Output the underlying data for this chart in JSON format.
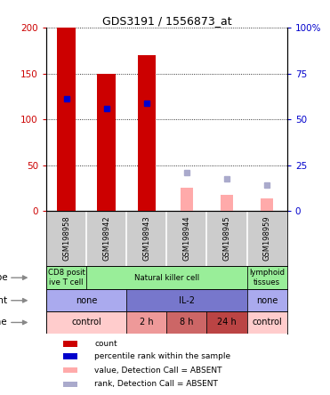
{
  "title": "GDS3191 / 1556873_at",
  "samples": [
    "GSM198958",
    "GSM198942",
    "GSM198943",
    "GSM198944",
    "GSM198945",
    "GSM198959"
  ],
  "count_values": [
    200,
    150,
    170,
    null,
    null,
    null
  ],
  "percentile_values": [
    122,
    112,
    118,
    null,
    null,
    null
  ],
  "absent_value_values": [
    null,
    null,
    null,
    25,
    18,
    14
  ],
  "absent_rank_values": [
    null,
    null,
    null,
    42,
    35,
    28
  ],
  "ylim_left": [
    0,
    200
  ],
  "ylim_right": [
    0,
    100
  ],
  "yticks_left": [
    0,
    50,
    100,
    150,
    200
  ],
  "yticks_right": [
    0,
    25,
    50,
    75,
    100
  ],
  "ytick_labels_left": [
    "0",
    "50",
    "100",
    "150",
    "200"
  ],
  "ytick_labels_right": [
    "0",
    "25",
    "50",
    "75",
    "100%"
  ],
  "cell_type_labels": [
    {
      "text": "CD8 posit\nive T cell",
      "start": 0,
      "end": 1,
      "color": "#99ee99"
    },
    {
      "text": "Natural killer cell",
      "start": 1,
      "end": 5,
      "color": "#99ee99"
    },
    {
      "text": "lymphoid\ntissues",
      "start": 5,
      "end": 6,
      "color": "#99ee99"
    }
  ],
  "agent_labels": [
    {
      "text": "none",
      "start": 0,
      "end": 2,
      "color": "#aaaaee"
    },
    {
      "text": "IL-2",
      "start": 2,
      "end": 5,
      "color": "#7777cc"
    },
    {
      "text": "none",
      "start": 5,
      "end": 6,
      "color": "#aaaaee"
    }
  ],
  "time_labels": [
    {
      "text": "control",
      "start": 0,
      "end": 2,
      "color": "#ffcccc"
    },
    {
      "text": "2 h",
      "start": 2,
      "end": 3,
      "color": "#ee9999"
    },
    {
      "text": "8 h",
      "start": 3,
      "end": 4,
      "color": "#cc6666"
    },
    {
      "text": "24 h",
      "start": 4,
      "end": 5,
      "color": "#bb4444"
    },
    {
      "text": "control",
      "start": 5,
      "end": 6,
      "color": "#ffcccc"
    }
  ],
  "legend_items": [
    {
      "color": "#cc0000",
      "label": "count"
    },
    {
      "color": "#0000cc",
      "label": "percentile rank within the sample"
    },
    {
      "color": "#ffaaaa",
      "label": "value, Detection Call = ABSENT"
    },
    {
      "color": "#aaaacc",
      "label": "rank, Detection Call = ABSENT"
    }
  ],
  "count_color": "#cc0000",
  "percentile_color": "#0000cc",
  "absent_value_color": "#ffaaaa",
  "absent_rank_color": "#aaaacc",
  "sample_bg_color": "#cccccc",
  "background_color": "#ffffff",
  "axis_color_left": "#cc0000",
  "axis_color_right": "#0000cc"
}
